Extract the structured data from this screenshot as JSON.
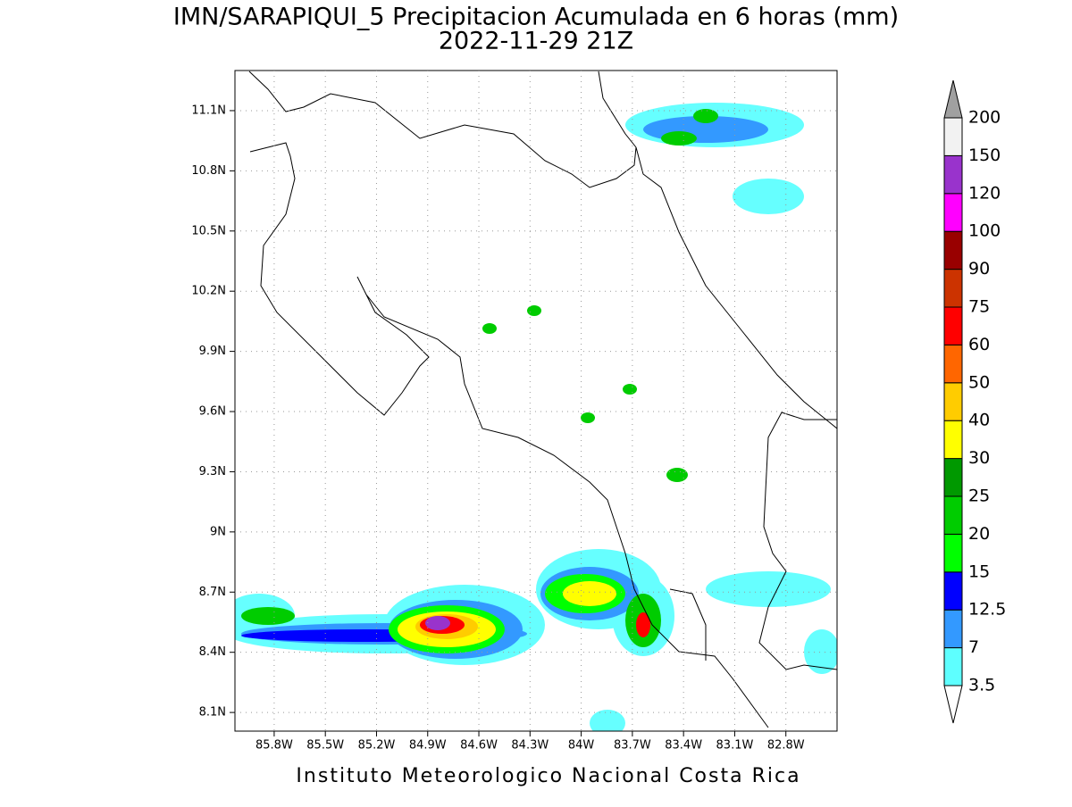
{
  "header": {
    "title": "IMN/SARAPIQUI_5 Precipitacion Acumulada en 6 horas (mm)",
    "subtitle": "2022-11-29 21Z"
  },
  "map": {
    "xlim": [
      -86.03,
      -82.5
    ],
    "ylim": [
      8.007,
      11.3
    ],
    "xticks": [
      {
        "value": -85.8,
        "label": "85.8W"
      },
      {
        "value": -85.5,
        "label": "85.5W"
      },
      {
        "value": -85.2,
        "label": "85.2W"
      },
      {
        "value": -84.9,
        "label": "84.9W"
      },
      {
        "value": -84.6,
        "label": "84.6W"
      },
      {
        "value": -84.3,
        "label": "84.3W"
      },
      {
        "value": -84,
        "label": "84W"
      },
      {
        "value": -83.7,
        "label": "83.7W"
      },
      {
        "value": -83.4,
        "label": "83.4W"
      },
      {
        "value": -83.1,
        "label": "83.1W"
      },
      {
        "value": -82.8,
        "label": "82.8W"
      }
    ],
    "yticks": [
      {
        "value": 8.1,
        "label": "8.1N"
      },
      {
        "value": 8.4,
        "label": "8.4N"
      },
      {
        "value": 8.7,
        "label": "8.7N"
      },
      {
        "value": 9,
        "label": "9N"
      },
      {
        "value": 9.3,
        "label": "9.3N"
      },
      {
        "value": 9.6,
        "label": "9.6N"
      },
      {
        "value": 9.9,
        "label": "9.9N"
      },
      {
        "value": 10.2,
        "label": "10.2N"
      },
      {
        "value": 10.5,
        "label": "10.5N"
      },
      {
        "value": 10.8,
        "label": "10.8N"
      },
      {
        "value": 11.1,
        "label": "11.1N"
      }
    ],
    "grid": true
  },
  "colorbar": {
    "levels": [
      3.5,
      7,
      12.5,
      15,
      20,
      25,
      30,
      40,
      50,
      60,
      75,
      90,
      100,
      120,
      150,
      200
    ],
    "colors": [
      "#5effff",
      "#3399ff",
      "#0000ff",
      "#00ff00",
      "#00cc00",
      "#009900",
      "#ffff00",
      "#ffcc00",
      "#ff6600",
      "#ff0000",
      "#cc3300",
      "#990000",
      "#ff00ff",
      "#9933cc",
      "#f2f2f2"
    ],
    "under_color": "#ffffff",
    "over_color": "#a0a0a0"
  },
  "footer": {
    "text": "Instituto Meteorologico Nacional Costa Rica"
  }
}
